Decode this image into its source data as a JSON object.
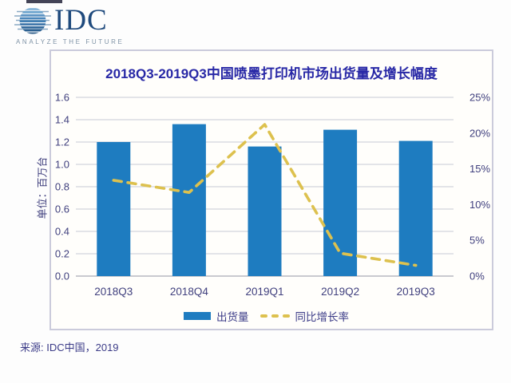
{
  "header": {
    "logo_text": "IDC",
    "logo_tagline": "ANALYZE THE FUTURE"
  },
  "source_note": "来源: IDC中国，2019",
  "colors": {
    "bar": "#1e7cc0",
    "line": "#ddc14e",
    "title_text": "#2828a6",
    "axis_text": "#40407e",
    "gridline": "#d2d5dd",
    "axis_line": "#a9acb5",
    "card_border": "#cbcbdb",
    "logo_navy": "#1f4a7d",
    "logo_gray": "#7f93a6"
  },
  "chart_data": {
    "type": "combo",
    "title": "2018Q3-2019Q3中国喷墨打印机市场出货量及增长幅度",
    "categories": [
      "2018Q3",
      "2018Q4",
      "2019Q1",
      "2019Q2",
      "2019Q3"
    ],
    "series": [
      {
        "name": "出货量",
        "type": "bar",
        "axis": "left",
        "unit": "百万台",
        "values": [
          1.2,
          1.36,
          1.16,
          1.31,
          1.21
        ],
        "color": "#1e7cc0"
      },
      {
        "name": "同比增长率",
        "type": "line",
        "line_style": "dashed",
        "axis": "right",
        "unit": "%",
        "values": [
          13.4,
          11.7,
          21.2,
          3.2,
          1.5
        ],
        "color": "#ddc14e"
      }
    ],
    "y_left": {
      "label": "单位：百万台",
      "min": 0,
      "max": 1.6,
      "tick_labels": [
        "0.0",
        "0.2",
        "0.4",
        "0.6",
        "0.8",
        "1.0",
        "1.2",
        "1.4",
        "1.6"
      ]
    },
    "y_right": {
      "min": 0,
      "max": 25,
      "tick_labels": [
        "0%",
        "5%",
        "10%",
        "15%",
        "20%",
        "25%"
      ]
    },
    "grid": true,
    "legend_position": "bottom"
  }
}
